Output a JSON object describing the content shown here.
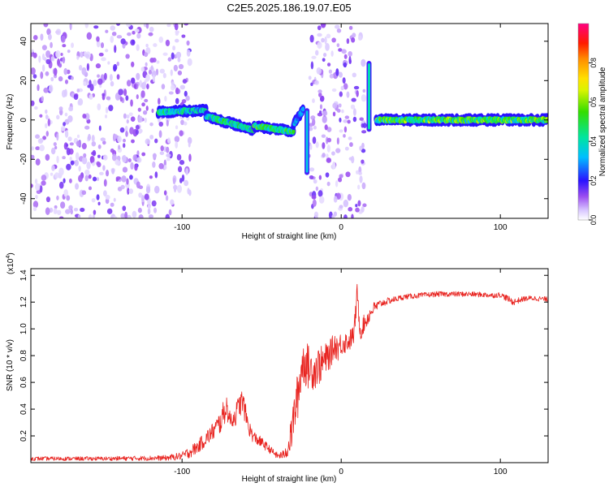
{
  "title": "C2E5.2025.186.19.07.E05",
  "colors": {
    "snr_line": "#e8231f",
    "colorscale": [
      "#ffffff",
      "#c8a8ff",
      "#8a2be2",
      "#0000ff",
      "#00bfff",
      "#00e5a0",
      "#33dd00",
      "#ffff00",
      "#ff8c00",
      "#ff0000",
      "#ff0080"
    ]
  },
  "chart_data": [
    {
      "type": "heatmap",
      "xlabel": "Height of straight line (km)",
      "ylabel": "Frequency (Hz)",
      "xlim": [
        -195,
        130
      ],
      "ylim": [
        -50,
        49
      ],
      "x_ticks": [
        -100,
        0,
        100
      ],
      "y_ticks": [
        -40,
        -20,
        0,
        20,
        40
      ],
      "colorbar": {
        "label": "Normalized spectral amplitude",
        "range": [
          0,
          1
        ],
        "ticks": [
          0.0,
          0.2,
          0.4,
          0.6,
          0.8
        ]
      },
      "regions": [
        {
          "kind": "noise",
          "x": [
            -195,
            -95
          ],
          "freq": [
            -50,
            49
          ],
          "density": 0.55
        },
        {
          "kind": "noise",
          "x": [
            -20,
            15
          ],
          "freq": [
            -50,
            49
          ],
          "density": 0.55
        },
        {
          "kind": "ridge",
          "x": [
            -115,
            -85
          ],
          "freq": [
            4,
            5
          ],
          "amp": 0.45
        },
        {
          "kind": "ridge",
          "x": [
            -85,
            -55
          ],
          "freq": [
            2,
            -5
          ],
          "amp": 0.5
        },
        {
          "kind": "ridge",
          "x": [
            -55,
            -30
          ],
          "freq": [
            -3,
            -6
          ],
          "amp": 0.55
        },
        {
          "kind": "ridge",
          "x": [
            -30,
            -24
          ],
          "freq": [
            -2,
            5
          ],
          "amp": 0.35
        },
        {
          "kind": "spike",
          "x": [
            -22,
            -21
          ],
          "freq": [
            -28,
            6
          ],
          "amp": 0.35
        },
        {
          "kind": "spike",
          "x": [
            17,
            18
          ],
          "freq": [
            -6,
            30
          ],
          "amp": 0.4
        },
        {
          "kind": "ridge",
          "x": [
            22,
            130
          ],
          "freq": [
            0,
            0
          ],
          "amp": 0.6
        }
      ]
    },
    {
      "type": "line",
      "xlabel": "Height of straight line (km)",
      "ylabel": "SNR (10 * v/v)",
      "y_multiplier_label": "(x10",
      "y_multiplier_exponent": "4",
      "xlim": [
        -195,
        130
      ],
      "ylim": [
        0,
        14500
      ],
      "x_ticks": [
        -100,
        0,
        100
      ],
      "y_ticks": [
        2000,
        4000,
        6000,
        8000,
        10000,
        12000,
        14000
      ],
      "y_tick_labels": [
        "0.2",
        "0.4",
        "0.6",
        "0.8",
        "1.0",
        "1.2",
        "1.4"
      ],
      "series": [
        {
          "x": [
            -195,
            -150,
            -110,
            -100,
            -95,
            -90,
            -85,
            -80,
            -76,
            -74,
            -72,
            -70,
            -67,
            -64,
            -62,
            -60,
            -58,
            -55,
            -50,
            -45,
            -40,
            -36,
            -33,
            -31,
            -29,
            -27,
            -26,
            -25,
            -23,
            -21,
            -19,
            -17,
            -15,
            -13,
            -10,
            -7,
            -4,
            -2,
            0,
            5,
            8,
            10,
            12,
            14,
            20,
            25,
            30,
            40,
            50,
            60,
            70,
            80,
            90,
            95,
            100,
            104,
            108,
            115,
            120,
            130
          ],
          "y": [
            300,
            300,
            350,
            500,
            800,
            1200,
            1800,
            2400,
            3000,
            3600,
            4200,
            3200,
            3400,
            4300,
            4600,
            3600,
            2600,
            1900,
            1500,
            1000,
            500,
            600,
            1200,
            2400,
            4000,
            5200,
            6000,
            7200,
            7600,
            7200,
            7000,
            6900,
            7200,
            7300,
            7700,
            8100,
            8800,
            8600,
            8900,
            9100,
            9600,
            12600,
            9800,
            10300,
            11500,
            11900,
            12100,
            12400,
            12500,
            12600,
            12600,
            12600,
            12550,
            12500,
            12550,
            12300,
            12000,
            12250,
            12300,
            12200
          ],
          "noise": [
            150,
            150,
            200,
            300,
            450,
            500,
            600,
            700,
            900,
            1000,
            900,
            700,
            800,
            900,
            1000,
            800,
            600,
            500,
            400,
            300,
            250,
            350,
            800,
            1400,
            1700,
            1800,
            2000,
            1800,
            1800,
            1700,
            1500,
            1500,
            1500,
            1400,
            1200,
            1100,
            1000,
            1000,
            900,
            800,
            800,
            800,
            700,
            700,
            500,
            300,
            250,
            200,
            200,
            200,
            200,
            200,
            200,
            200,
            200,
            250,
            250,
            200,
            200,
            200
          ]
        }
      ]
    }
  ]
}
